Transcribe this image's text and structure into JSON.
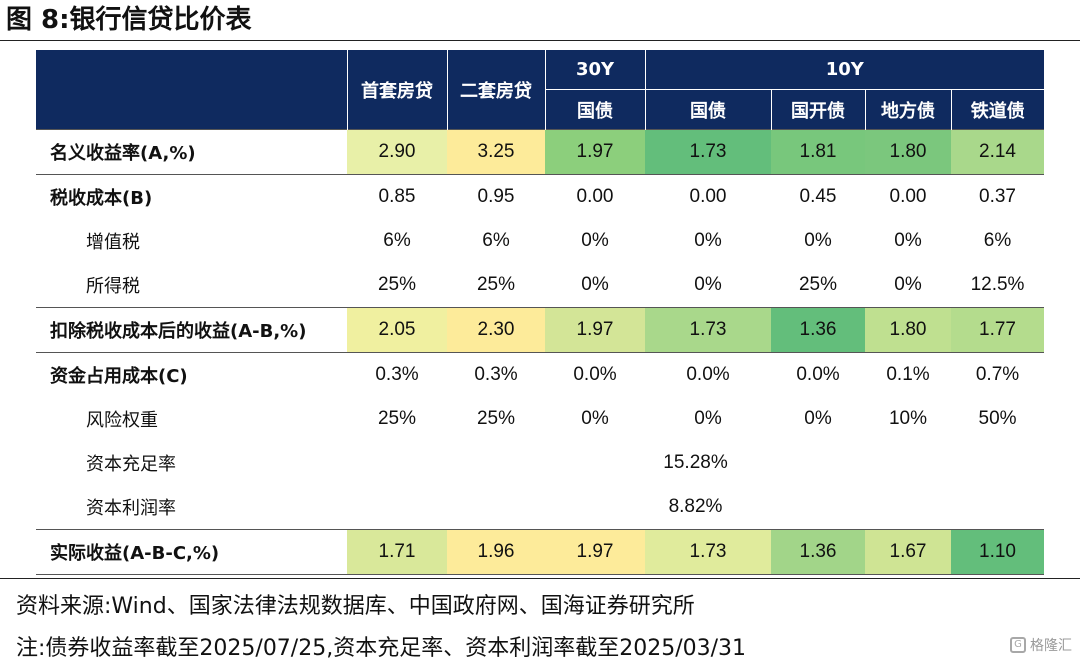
{
  "title": "图 8:银行信贷比价表",
  "table": {
    "header_row1": {
      "col1": "首套房贷",
      "col2": "二套房贷",
      "group1": "30Y",
      "group2": "10Y"
    },
    "header_row2": [
      "国债",
      "国债",
      "国开债",
      "地方债",
      "铁道债"
    ],
    "rows": [
      {
        "label": "名义收益率(A,%)",
        "style": "bold",
        "boxed": true,
        "values": [
          "2.90",
          "3.25",
          "1.97",
          "1.73",
          "1.81",
          "1.80",
          "2.14"
        ],
        "colors": [
          "#e8f0a8",
          "#fdeb9a",
          "#8ccf7c",
          "#63be7b",
          "#78c77c",
          "#7bc77d",
          "#a9d88b"
        ]
      },
      {
        "label": "税收成本(B)",
        "style": "bold",
        "boxed": false,
        "values": [
          "0.85",
          "0.95",
          "0.00",
          "0.00",
          "0.45",
          "0.00",
          "0.37"
        ]
      },
      {
        "label": "增值税",
        "style": "indent",
        "boxed": false,
        "values": [
          "6%",
          "6%",
          "0%",
          "0%",
          "0%",
          "0%",
          "6%"
        ]
      },
      {
        "label": "所得税",
        "style": "indent",
        "boxed": false,
        "values": [
          "25%",
          "25%",
          "0%",
          "0%",
          "25%",
          "0%",
          "12.5%"
        ]
      },
      {
        "label": "扣除税收成本后的收益(A-B,%)",
        "style": "bold",
        "boxed": true,
        "values": [
          "2.05",
          "2.30",
          "1.97",
          "1.73",
          "1.36",
          "1.80",
          "1.77"
        ],
        "colors": [
          "#f0f0a0",
          "#fdeb9a",
          "#d3e597",
          "#a9d88b",
          "#63be7b",
          "#bfe090",
          "#b4dc8d"
        ]
      },
      {
        "label": "资金占用成本(C)",
        "style": "bold",
        "boxed": false,
        "values": [
          "0.3%",
          "0.3%",
          "0.0%",
          "0.0%",
          "0.0%",
          "0.1%",
          "0.7%"
        ]
      },
      {
        "label": "风险权重",
        "style": "indent",
        "boxed": false,
        "values": [
          "25%",
          "25%",
          "0%",
          "0%",
          "0%",
          "10%",
          "50%"
        ]
      },
      {
        "label": "资本充足率",
        "style": "indent",
        "boxed": false,
        "merged": "15.28%"
      },
      {
        "label": "资本利润率",
        "style": "indent",
        "boxed": false,
        "merged": "8.82%"
      },
      {
        "label": "实际收益(A-B-C,%)",
        "style": "bold",
        "boxed": true,
        "values": [
          "1.71",
          "1.96",
          "1.97",
          "1.73",
          "1.36",
          "1.67",
          "1.10"
        ],
        "colors": [
          "#d9e89a",
          "#fdeb9a",
          "#fdeb9a",
          "#e0eb9c",
          "#a2d589",
          "#cfe494",
          "#63be7b"
        ]
      }
    ]
  },
  "source": "资料来源:Wind、国家法律法规数据库、中国政府网、国海证券研究所",
  "note": "注:债券收益率截至2025/07/25,资本充足率、资本利润率截至2025/03/31",
  "watermark": "格隆汇"
}
